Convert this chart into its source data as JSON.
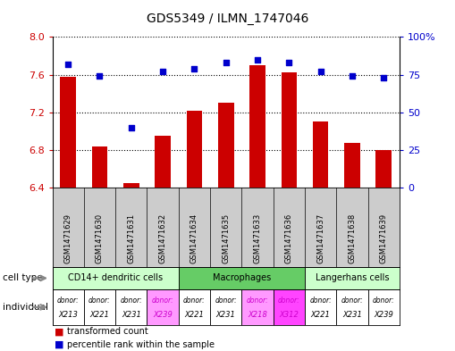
{
  "title": "GDS5349 / ILMN_1747046",
  "samples": [
    "GSM1471629",
    "GSM1471630",
    "GSM1471631",
    "GSM1471632",
    "GSM1471634",
    "GSM1471635",
    "GSM1471633",
    "GSM1471636",
    "GSM1471637",
    "GSM1471638",
    "GSM1471639"
  ],
  "transformed_count": [
    7.58,
    6.84,
    6.45,
    6.95,
    7.22,
    7.3,
    7.7,
    7.62,
    7.1,
    6.88,
    6.8
  ],
  "percentile_rank": [
    82,
    74,
    40,
    77,
    79,
    83,
    85,
    83,
    77,
    74,
    73
  ],
  "ylim": [
    6.4,
    8.0
  ],
  "yticks": [
    6.4,
    6.8,
    7.2,
    7.6,
    8.0
  ],
  "y2lim": [
    0,
    100
  ],
  "y2ticks": [
    0,
    25,
    50,
    75,
    100
  ],
  "y2ticklabels": [
    "0",
    "25",
    "50",
    "75",
    "100%"
  ],
  "bar_color": "#cc0000",
  "dot_color": "#0000cc",
  "cell_types": [
    {
      "label": "CD14+ dendritic cells",
      "start": 0,
      "end": 4,
      "color": "#ccffcc"
    },
    {
      "label": "Macrophages",
      "start": 4,
      "end": 8,
      "color": "#66cc66"
    },
    {
      "label": "Langerhans cells",
      "start": 8,
      "end": 11,
      "color": "#ccffcc"
    }
  ],
  "individuals": [
    {
      "donor": "X213",
      "col": 0,
      "color": "#ffffff"
    },
    {
      "donor": "X221",
      "col": 1,
      "color": "#ffffff"
    },
    {
      "donor": "X231",
      "col": 2,
      "color": "#ffffff"
    },
    {
      "donor": "X239",
      "col": 3,
      "color": "#ff99ff"
    },
    {
      "donor": "X221",
      "col": 4,
      "color": "#ffffff"
    },
    {
      "donor": "X231",
      "col": 5,
      "color": "#ffffff"
    },
    {
      "donor": "X218",
      "col": 6,
      "color": "#ff99ff"
    },
    {
      "donor": "X312",
      "col": 7,
      "color": "#ff44ff"
    },
    {
      "donor": "X221",
      "col": 8,
      "color": "#ffffff"
    },
    {
      "donor": "X231",
      "col": 9,
      "color": "#ffffff"
    },
    {
      "donor": "X239",
      "col": 10,
      "color": "#ffffff"
    }
  ],
  "tick_label_color": "#cc0000",
  "y2_label_color": "#0000cc",
  "label_bg": "#cccccc",
  "border_color": "#000000"
}
